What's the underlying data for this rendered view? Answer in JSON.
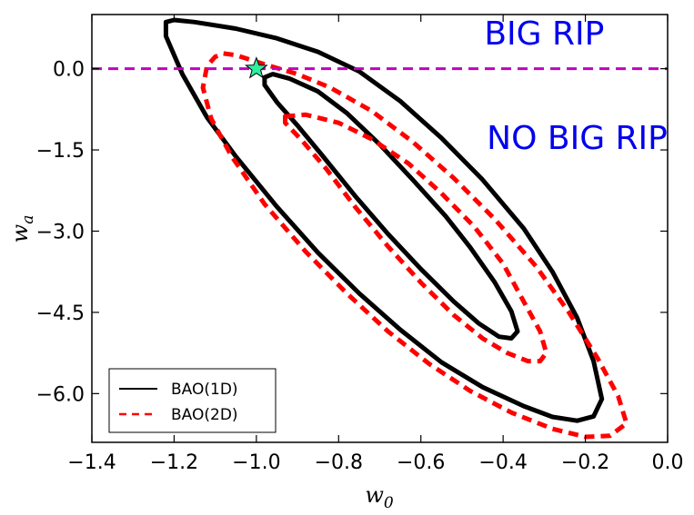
{
  "chart_data": {
    "type": "line",
    "title": "",
    "xlabel": "w",
    "xlabel_sub": "0",
    "ylabel": "w",
    "ylabel_sub": "a",
    "xlim": [
      -1.4,
      0.0
    ],
    "ylim": [
      -6.9,
      1.0
    ],
    "xticks": [
      -1.4,
      -1.2,
      -1.0,
      -0.8,
      -0.6,
      -0.4,
      -0.2,
      0.0
    ],
    "xtick_labels": [
      "−1.4",
      "−1.2",
      "−1.0",
      "−0.8",
      "−0.6",
      "−0.4",
      "−0.2",
      "0.0"
    ],
    "yticks": [
      0.0,
      -1.5,
      -3.0,
      -4.5,
      -6.0
    ],
    "ytick_labels": [
      "0.0",
      "−1.5",
      "−3.0",
      "−4.5",
      "−6.0"
    ],
    "grid": false,
    "series": [
      {
        "name": "BAO(1D)",
        "role": "outer",
        "style": "solid",
        "color": "#000000",
        "points": [
          [
            -1.22,
            0.86
          ],
          [
            -1.2,
            0.9
          ],
          [
            -1.15,
            0.86
          ],
          [
            -1.05,
            0.74
          ],
          [
            -0.95,
            0.56
          ],
          [
            -0.85,
            0.31
          ],
          [
            -0.75,
            -0.05
          ],
          [
            -0.65,
            -0.6
          ],
          [
            -0.55,
            -1.28
          ],
          [
            -0.45,
            -2.05
          ],
          [
            -0.35,
            -2.95
          ],
          [
            -0.28,
            -3.75
          ],
          [
            -0.22,
            -4.6
          ],
          [
            -0.18,
            -5.4
          ],
          [
            -0.16,
            -6.1
          ],
          [
            -0.18,
            -6.42
          ],
          [
            -0.22,
            -6.5
          ],
          [
            -0.28,
            -6.43
          ],
          [
            -0.35,
            -6.23
          ],
          [
            -0.45,
            -5.88
          ],
          [
            -0.55,
            -5.42
          ],
          [
            -0.65,
            -4.82
          ],
          [
            -0.75,
            -4.15
          ],
          [
            -0.85,
            -3.4
          ],
          [
            -0.95,
            -2.55
          ],
          [
            -1.05,
            -1.62
          ],
          [
            -1.12,
            -0.9
          ],
          [
            -1.18,
            -0.1
          ],
          [
            -1.22,
            0.6
          ],
          [
            -1.22,
            0.86
          ]
        ]
      },
      {
        "name": "BAO(1D)",
        "role": "inner",
        "style": "solid",
        "color": "#000000",
        "points": [
          [
            -0.96,
            -0.1
          ],
          [
            -0.92,
            -0.18
          ],
          [
            -0.85,
            -0.42
          ],
          [
            -0.78,
            -0.82
          ],
          [
            -0.7,
            -1.4
          ],
          [
            -0.62,
            -2.05
          ],
          [
            -0.54,
            -2.72
          ],
          [
            -0.48,
            -3.3
          ],
          [
            -0.42,
            -3.95
          ],
          [
            -0.38,
            -4.48
          ],
          [
            -0.365,
            -4.85
          ],
          [
            -0.38,
            -4.98
          ],
          [
            -0.41,
            -4.95
          ],
          [
            -0.46,
            -4.7
          ],
          [
            -0.52,
            -4.3
          ],
          [
            -0.6,
            -3.7
          ],
          [
            -0.68,
            -3.05
          ],
          [
            -0.76,
            -2.35
          ],
          [
            -0.84,
            -1.6
          ],
          [
            -0.9,
            -1.05
          ],
          [
            -0.95,
            -0.62
          ],
          [
            -0.98,
            -0.3
          ],
          [
            -0.98,
            -0.16
          ],
          [
            -0.96,
            -0.1
          ]
        ]
      },
      {
        "name": "BAO(2D)",
        "role": "outer",
        "style": "dashed",
        "color": "#ff0000",
        "points": [
          [
            -1.08,
            0.28
          ],
          [
            -1.05,
            0.25
          ],
          [
            -0.98,
            0.08
          ],
          [
            -0.9,
            -0.1
          ],
          [
            -0.82,
            -0.35
          ],
          [
            -0.72,
            -0.78
          ],
          [
            -0.62,
            -1.35
          ],
          [
            -0.52,
            -2.02
          ],
          [
            -0.42,
            -2.78
          ],
          [
            -0.32,
            -3.65
          ],
          [
            -0.24,
            -4.5
          ],
          [
            -0.17,
            -5.35
          ],
          [
            -0.12,
            -6.05
          ],
          [
            -0.1,
            -6.55
          ],
          [
            -0.14,
            -6.78
          ],
          [
            -0.2,
            -6.8
          ],
          [
            -0.28,
            -6.65
          ],
          [
            -0.38,
            -6.35
          ],
          [
            -0.48,
            -5.95
          ],
          [
            -0.58,
            -5.45
          ],
          [
            -0.68,
            -4.85
          ],
          [
            -0.78,
            -4.15
          ],
          [
            -0.88,
            -3.38
          ],
          [
            -0.98,
            -2.5
          ],
          [
            -1.06,
            -1.62
          ],
          [
            -1.11,
            -0.92
          ],
          [
            -1.13,
            -0.35
          ],
          [
            -1.12,
            0.05
          ],
          [
            -1.1,
            0.22
          ],
          [
            -1.08,
            0.28
          ]
        ]
      },
      {
        "name": "BAO(2D)",
        "role": "inner",
        "style": "dashed",
        "color": "#ff0000",
        "points": [
          [
            -0.93,
            -0.88
          ],
          [
            -0.88,
            -0.85
          ],
          [
            -0.8,
            -1.0
          ],
          [
            -0.72,
            -1.3
          ],
          [
            -0.63,
            -1.75
          ],
          [
            -0.55,
            -2.3
          ],
          [
            -0.47,
            -2.92
          ],
          [
            -0.4,
            -3.6
          ],
          [
            -0.35,
            -4.3
          ],
          [
            -0.31,
            -4.85
          ],
          [
            -0.295,
            -5.25
          ],
          [
            -0.31,
            -5.4
          ],
          [
            -0.34,
            -5.4
          ],
          [
            -0.39,
            -5.25
          ],
          [
            -0.45,
            -4.98
          ],
          [
            -0.52,
            -4.55
          ],
          [
            -0.6,
            -3.95
          ],
          [
            -0.68,
            -3.28
          ],
          [
            -0.76,
            -2.55
          ],
          [
            -0.83,
            -1.85
          ],
          [
            -0.89,
            -1.32
          ],
          [
            -0.93,
            -1.0
          ],
          [
            -0.93,
            -0.88
          ]
        ]
      }
    ],
    "reference_line": {
      "y": 0.0,
      "style": "dashed",
      "color": "#c000c0"
    },
    "marker": {
      "x": -1.0,
      "y": 0.0,
      "shape": "star",
      "color": "#2eeea0"
    },
    "annotations": [
      {
        "text": "BIG RIP",
        "x": -0.3,
        "y": 0.65,
        "color": "#0000ee"
      },
      {
        "text": "NO BIG RIP",
        "x": -0.22,
        "y": -1.28,
        "color": "#0000ee"
      }
    ],
    "legend": {
      "position": "bottom-left",
      "entries": [
        {
          "label": "BAO(1D)",
          "style": "solid",
          "color": "#000000"
        },
        {
          "label": "BAO(2D)",
          "style": "dashed",
          "color": "#ff0000"
        }
      ]
    }
  }
}
